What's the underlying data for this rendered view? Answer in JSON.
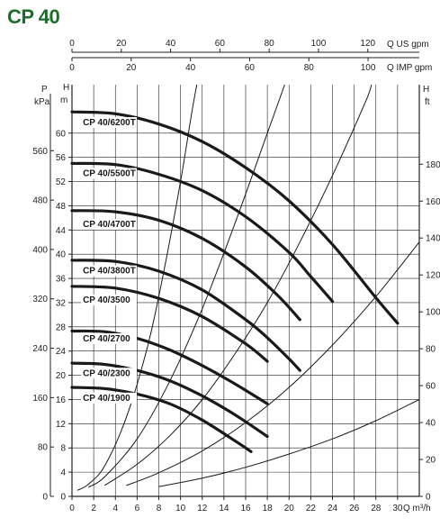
{
  "title": "CP 40",
  "colors": {
    "title": "#1e6b2c",
    "curve": "#1a1a1a",
    "grid": "#222222"
  },
  "chart_data": {
    "type": "line",
    "title": "CP 40",
    "grid": true,
    "x": {
      "label": "Q m³/h",
      "range": [
        0,
        32
      ],
      "ticks": [
        0,
        2,
        4,
        6,
        8,
        10,
        12,
        14,
        16,
        18,
        20,
        22,
        24,
        26,
        28,
        30
      ]
    },
    "y_head_m": {
      "label": "H m",
      "range": [
        0,
        68
      ],
      "ticks": [
        0,
        4,
        8,
        12,
        16,
        20,
        24,
        28,
        32,
        36,
        40,
        44,
        48,
        52,
        56,
        60
      ]
    },
    "y_head_ft": {
      "label": "H ft",
      "range": [
        0,
        223.1
      ],
      "ticks": [
        0,
        20,
        40,
        60,
        80,
        100,
        120,
        140,
        160,
        180
      ]
    },
    "y_pressure": {
      "label": "P kPa",
      "range": [
        0,
        667
      ],
      "ticks": [
        0,
        80,
        160,
        240,
        320,
        400,
        480,
        560
      ]
    },
    "x_top_us": {
      "label": "Q US gpm",
      "range": [
        0,
        140.9
      ],
      "ticks": [
        0,
        20,
        40,
        60,
        80,
        100,
        120
      ]
    },
    "x_top_imp": {
      "label": "Q IMP gpm",
      "range": [
        0,
        117.3
      ],
      "ticks": [
        0,
        20,
        40,
        60,
        80,
        100
      ]
    },
    "pump_curves": [
      {
        "name": "CP 40/6200T",
        "label_at": [
          1.0,
          61.3
        ],
        "points": [
          [
            0,
            63.5
          ],
          [
            4,
            63.2
          ],
          [
            8,
            61.5
          ],
          [
            12,
            58.6
          ],
          [
            16,
            54.3
          ],
          [
            20,
            48.8
          ],
          [
            24,
            41.6
          ],
          [
            28,
            32.8
          ],
          [
            30,
            28.6
          ]
        ]
      },
      {
        "name": "CP 40/5500T",
        "label_at": [
          1.0,
          52.9
        ],
        "points": [
          [
            0,
            55.0
          ],
          [
            4,
            54.8
          ],
          [
            8,
            53.2
          ],
          [
            12,
            50.5
          ],
          [
            16,
            46.2
          ],
          [
            20,
            40.3
          ],
          [
            22,
            36.3
          ],
          [
            24,
            32.2
          ]
        ]
      },
      {
        "name": "CP 40/4700T",
        "label_at": [
          1.0,
          44.5
        ],
        "points": [
          [
            0,
            47.2
          ],
          [
            4,
            47.0
          ],
          [
            8,
            45.6
          ],
          [
            12,
            42.6
          ],
          [
            16,
            37.9
          ],
          [
            19,
            33.1
          ],
          [
            21,
            29.2
          ]
        ]
      },
      {
        "name": "CP 40/3800T",
        "label_at": [
          1.0,
          36.8
        ],
        "points": [
          [
            0,
            39.0
          ],
          [
            4,
            38.8
          ],
          [
            8,
            37.2
          ],
          [
            12,
            34.1
          ],
          [
            16,
            29.2
          ],
          [
            18,
            26.2
          ],
          [
            20,
            22.7
          ],
          [
            21,
            20.8
          ]
        ]
      },
      {
        "name": "CP 40/3500",
        "label_at": [
          1.0,
          32.0
        ],
        "points": [
          [
            0,
            34.7
          ],
          [
            4,
            34.4
          ],
          [
            8,
            32.7
          ],
          [
            12,
            29.7
          ],
          [
            16,
            25.2
          ],
          [
            18,
            22.3
          ]
        ]
      },
      {
        "name": "CP 40/2700",
        "label_at": [
          1.0,
          25.6
        ],
        "points": [
          [
            0,
            27.3
          ],
          [
            3,
            27.2
          ],
          [
            6,
            26.1
          ],
          [
            9,
            24.2
          ],
          [
            12,
            21.6
          ],
          [
            15,
            18.6
          ],
          [
            18,
            15.3
          ]
        ]
      },
      {
        "name": "CP 40/2300",
        "label_at": [
          1.0,
          19.9
        ],
        "points": [
          [
            0,
            22.0
          ],
          [
            3,
            21.8
          ],
          [
            6,
            20.8
          ],
          [
            9,
            19.1
          ],
          [
            12,
            16.6
          ],
          [
            15,
            13.5
          ],
          [
            18,
            9.9
          ]
        ]
      },
      {
        "name": "CP 40/1900",
        "label_at": [
          1.0,
          15.8
        ],
        "points": [
          [
            0,
            18.0
          ],
          [
            3,
            17.8
          ],
          [
            6,
            16.9
          ],
          [
            9,
            15.3
          ],
          [
            12,
            12.6
          ],
          [
            15,
            9.2
          ],
          [
            16.5,
            7.4
          ]
        ]
      }
    ],
    "system_curves": [
      {
        "points": [
          [
            0.5,
            1.0
          ],
          [
            1.5,
            2.0
          ],
          [
            3,
            5.0
          ],
          [
            5,
            13.0
          ],
          [
            7,
            25.0
          ],
          [
            8.5,
            37.5
          ],
          [
            10,
            52.0
          ],
          [
            11,
            63.0
          ],
          [
            11.5,
            68.0
          ]
        ]
      },
      {
        "points": [
          [
            1.5,
            1.5
          ],
          [
            3,
            3.2
          ],
          [
            6,
            9.5
          ],
          [
            9,
            19.0
          ],
          [
            12,
            31.0
          ],
          [
            15,
            45.0
          ],
          [
            18,
            60.0
          ],
          [
            19.6,
            68.0
          ]
        ]
      },
      {
        "points": [
          [
            3,
            1.8
          ],
          [
            6,
            5.3
          ],
          [
            9,
            10.0
          ],
          [
            12,
            16.0
          ],
          [
            15,
            23.5
          ],
          [
            18,
            32.0
          ],
          [
            21,
            42.0
          ],
          [
            24,
            53.0
          ],
          [
            27,
            65.0
          ],
          [
            27.6,
            68.0
          ]
        ]
      },
      {
        "points": [
          [
            5,
            1.8
          ],
          [
            8,
            3.9
          ],
          [
            12,
            7.5
          ],
          [
            16,
            12.2
          ],
          [
            20,
            18.0
          ],
          [
            24,
            25.0
          ],
          [
            28,
            33.0
          ],
          [
            32,
            42.0
          ]
        ]
      },
      {
        "points": [
          [
            8,
            1.6
          ],
          [
            12,
            3.0
          ],
          [
            16,
            4.8
          ],
          [
            20,
            7.0
          ],
          [
            24,
            9.5
          ],
          [
            28,
            12.5
          ],
          [
            32,
            16.0
          ]
        ]
      }
    ]
  }
}
